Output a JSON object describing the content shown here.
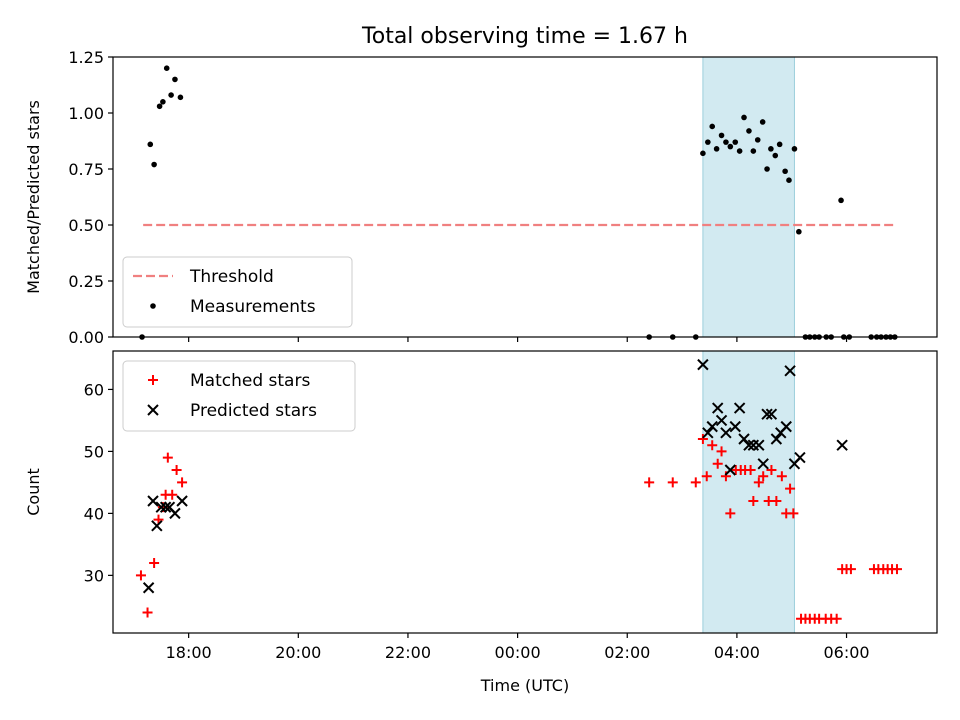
{
  "title": "Total observing time = 1.67 h",
  "chart_data": [
    {
      "type": "scatter",
      "ylabel": "Matched/Predicted stars",
      "xlabel": "",
      "x_ticks": [
        "18:00",
        "20:00",
        "22:00",
        "00:00",
        "02:00",
        "04:00",
        "06:00"
      ],
      "x_tick_hours": [
        18,
        20,
        22,
        24,
        26,
        28,
        30
      ],
      "xlim_hours": [
        16.62,
        31.65
      ],
      "ylim": [
        0,
        1.25
      ],
      "y_ticks": [
        "0.00",
        "0.25",
        "0.50",
        "0.75",
        "1.00",
        "1.25"
      ],
      "y_tick_values": [
        0,
        0.25,
        0.5,
        0.75,
        1.0,
        1.25
      ],
      "highlight_span_hours": [
        27.38,
        29.05
      ],
      "legend_position": "lower-left",
      "threshold": {
        "name": "Threshold",
        "value": 0.5,
        "x_hours": [
          17.17,
          30.9
        ],
        "color": "#f08080"
      },
      "series": [
        {
          "name": "Measurements",
          "color": "#000000",
          "points": [
            [
              17.15,
              0.0
            ],
            [
              17.3,
              0.86
            ],
            [
              17.37,
              0.77
            ],
            [
              17.47,
              1.03
            ],
            [
              17.53,
              1.05
            ],
            [
              17.6,
              1.2
            ],
            [
              17.68,
              1.08
            ],
            [
              17.75,
              1.15
            ],
            [
              17.85,
              1.07
            ],
            [
              26.4,
              0.0
            ],
            [
              26.83,
              0.0
            ],
            [
              27.25,
              0.0
            ],
            [
              27.38,
              0.82
            ],
            [
              27.47,
              0.87
            ],
            [
              27.55,
              0.94
            ],
            [
              27.63,
              0.84
            ],
            [
              27.72,
              0.9
            ],
            [
              27.8,
              0.87
            ],
            [
              27.88,
              0.85
            ],
            [
              27.97,
              0.87
            ],
            [
              28.05,
              0.83
            ],
            [
              28.13,
              0.98
            ],
            [
              28.22,
              0.92
            ],
            [
              28.3,
              0.83
            ],
            [
              28.38,
              0.88
            ],
            [
              28.47,
              0.96
            ],
            [
              28.55,
              0.75
            ],
            [
              28.62,
              0.84
            ],
            [
              28.7,
              0.81
            ],
            [
              28.78,
              0.86
            ],
            [
              28.88,
              0.74
            ],
            [
              28.95,
              0.7
            ],
            [
              29.05,
              0.84
            ],
            [
              29.13,
              0.47
            ],
            [
              29.25,
              0.0
            ],
            [
              29.33,
              0.0
            ],
            [
              29.42,
              0.0
            ],
            [
              29.5,
              0.0
            ],
            [
              29.63,
              0.0
            ],
            [
              29.72,
              0.0
            ],
            [
              29.9,
              0.61
            ],
            [
              29.95,
              0.0
            ],
            [
              30.05,
              0.0
            ],
            [
              30.45,
              0.0
            ],
            [
              30.55,
              0.0
            ],
            [
              30.63,
              0.0
            ],
            [
              30.72,
              0.0
            ],
            [
              30.8,
              0.0
            ],
            [
              30.88,
              0.0
            ]
          ]
        }
      ]
    },
    {
      "type": "scatter",
      "ylabel": "Count",
      "xlabel": "Time (UTC)",
      "x_ticks": [
        "18:00",
        "20:00",
        "22:00",
        "00:00",
        "02:00",
        "04:00",
        "06:00"
      ],
      "x_tick_hours": [
        18,
        20,
        22,
        24,
        26,
        28,
        30
      ],
      "xlim_hours": [
        16.62,
        31.65
      ],
      "ylim": [
        20.7,
        66.2
      ],
      "y_ticks": [
        "30",
        "40",
        "50",
        "60"
      ],
      "y_tick_values": [
        30,
        40,
        50,
        60
      ],
      "highlight_span_hours": [
        27.38,
        29.05
      ],
      "legend_position": "upper-left",
      "series": [
        {
          "name": "Matched stars",
          "color": "#ff0000",
          "marker": "plus",
          "points": [
            [
              17.13,
              30
            ],
            [
              17.25,
              24
            ],
            [
              17.37,
              32
            ],
            [
              17.45,
              39
            ],
            [
              17.53,
              41
            ],
            [
              17.58,
              43
            ],
            [
              17.62,
              49
            ],
            [
              17.7,
              43
            ],
            [
              17.78,
              47
            ],
            [
              17.88,
              45
            ],
            [
              26.4,
              45
            ],
            [
              26.83,
              45
            ],
            [
              27.25,
              45
            ],
            [
              27.38,
              52
            ],
            [
              27.45,
              46
            ],
            [
              27.55,
              51
            ],
            [
              27.65,
              48
            ],
            [
              27.72,
              50
            ],
            [
              27.8,
              46
            ],
            [
              27.88,
              40
            ],
            [
              27.98,
              47
            ],
            [
              28.07,
              47
            ],
            [
              28.15,
              47
            ],
            [
              28.25,
              47
            ],
            [
              28.3,
              42
            ],
            [
              28.4,
              45
            ],
            [
              28.48,
              46
            ],
            [
              28.58,
              42
            ],
            [
              28.63,
              47
            ],
            [
              28.72,
              42
            ],
            [
              28.82,
              46
            ],
            [
              28.9,
              40
            ],
            [
              28.97,
              44
            ],
            [
              29.03,
              40
            ],
            [
              29.17,
              23
            ],
            [
              29.25,
              23
            ],
            [
              29.33,
              23
            ],
            [
              29.42,
              23
            ],
            [
              29.5,
              23
            ],
            [
              29.62,
              23
            ],
            [
              29.72,
              23
            ],
            [
              29.82,
              23
            ],
            [
              29.92,
              31
            ],
            [
              30.0,
              31
            ],
            [
              30.08,
              31
            ],
            [
              30.5,
              31
            ],
            [
              30.58,
              31
            ],
            [
              30.67,
              31
            ],
            [
              30.75,
              31
            ],
            [
              30.83,
              31
            ],
            [
              30.92,
              31
            ]
          ]
        },
        {
          "name": "Predicted stars",
          "color": "#000000",
          "marker": "x",
          "points": [
            [
              17.27,
              28
            ],
            [
              17.35,
              42
            ],
            [
              17.42,
              38
            ],
            [
              17.5,
              41
            ],
            [
              17.58,
              41
            ],
            [
              17.65,
              41
            ],
            [
              17.75,
              40
            ],
            [
              17.88,
              42
            ],
            [
              27.38,
              64
            ],
            [
              27.47,
              53
            ],
            [
              27.55,
              54
            ],
            [
              27.65,
              57
            ],
            [
              27.72,
              55
            ],
            [
              27.8,
              53
            ],
            [
              27.88,
              47
            ],
            [
              27.97,
              54
            ],
            [
              28.05,
              57
            ],
            [
              28.13,
              52
            ],
            [
              28.22,
              51
            ],
            [
              28.3,
              51
            ],
            [
              28.4,
              51
            ],
            [
              28.48,
              48
            ],
            [
              28.55,
              56
            ],
            [
              28.63,
              56
            ],
            [
              28.72,
              52
            ],
            [
              28.8,
              53
            ],
            [
              28.9,
              54
            ],
            [
              28.97,
              63
            ],
            [
              29.05,
              48
            ],
            [
              29.15,
              49
            ],
            [
              29.92,
              51
            ]
          ]
        }
      ]
    }
  ]
}
